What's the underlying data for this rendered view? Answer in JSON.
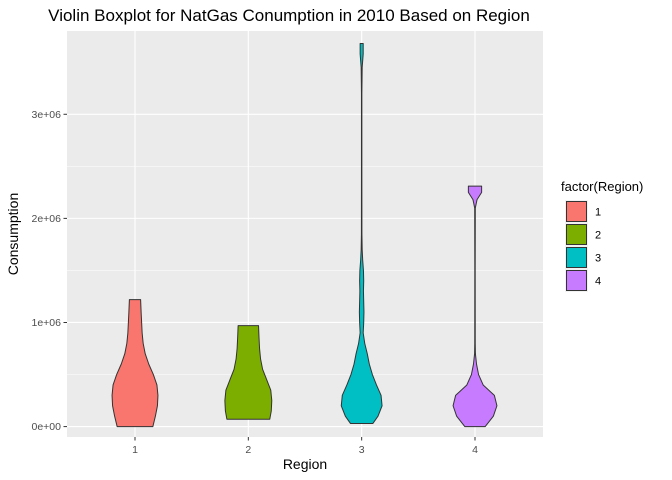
{
  "chart_data": {
    "type": "violin",
    "title": "Violin Boxplot for NatGas Conumption in 2010 Based on Region",
    "xlabel": "Region",
    "ylabel": "Consumption",
    "categories": [
      "1",
      "2",
      "3",
      "4"
    ],
    "ylim": [
      -100000,
      3800000
    ],
    "yticks": [
      {
        "value": 0,
        "label": "0e+00"
      },
      {
        "value": 1000000,
        "label": "1e+06"
      },
      {
        "value": 2000000,
        "label": "2e+06"
      },
      {
        "value": 3000000,
        "label": "3e+06"
      }
    ],
    "grid": true,
    "legend": {
      "title": "factor(Region)",
      "position": "right",
      "entries": [
        {
          "label": "1",
          "color": "#F8766D"
        },
        {
          "label": "2",
          "color": "#7CAE00"
        },
        {
          "label": "3",
          "color": "#00BFC4"
        },
        {
          "label": "4",
          "color": "#C77CFF"
        }
      ]
    },
    "series": [
      {
        "category": "1",
        "color": "#F8766D",
        "min": 0,
        "max": 1220000,
        "profile": [
          [
            0,
            0.35
          ],
          [
            100000,
            0.4
          ],
          [
            200000,
            0.44
          ],
          [
            300000,
            0.45
          ],
          [
            400000,
            0.43
          ],
          [
            500000,
            0.36
          ],
          [
            600000,
            0.27
          ],
          [
            700000,
            0.2
          ],
          [
            800000,
            0.16
          ],
          [
            900000,
            0.14
          ],
          [
            1000000,
            0.13
          ],
          [
            1100000,
            0.12
          ],
          [
            1220000,
            0.11
          ]
        ]
      },
      {
        "category": "2",
        "color": "#7CAE00",
        "min": 70000,
        "max": 970000,
        "profile": [
          [
            70000,
            0.42
          ],
          [
            150000,
            0.45
          ],
          [
            250000,
            0.46
          ],
          [
            350000,
            0.44
          ],
          [
            450000,
            0.36
          ],
          [
            550000,
            0.28
          ],
          [
            650000,
            0.24
          ],
          [
            750000,
            0.22
          ],
          [
            850000,
            0.21
          ],
          [
            970000,
            0.2
          ]
        ]
      },
      {
        "category": "3",
        "color": "#00BFC4",
        "min": 30000,
        "max": 3680000,
        "profile": [
          [
            30000,
            0.22
          ],
          [
            100000,
            0.32
          ],
          [
            200000,
            0.4
          ],
          [
            300000,
            0.38
          ],
          [
            400000,
            0.29
          ],
          [
            500000,
            0.21
          ],
          [
            600000,
            0.15
          ],
          [
            700000,
            0.11
          ],
          [
            800000,
            0.06
          ],
          [
            900000,
            0.03
          ],
          [
            1000000,
            0.04
          ],
          [
            1100000,
            0.045
          ],
          [
            1200000,
            0.04
          ],
          [
            1300000,
            0.035
          ],
          [
            1400000,
            0.04
          ],
          [
            1500000,
            0.035
          ],
          [
            1600000,
            0.02
          ],
          [
            1700000,
            0.01
          ],
          [
            1850000,
            0.005
          ],
          [
            2500000,
            0.004
          ],
          [
            3200000,
            0.004
          ],
          [
            3450000,
            0.01
          ],
          [
            3580000,
            0.03
          ],
          [
            3680000,
            0.03
          ]
        ]
      },
      {
        "category": "4",
        "color": "#C77CFF",
        "min": 0,
        "max": 2310000,
        "profile": [
          [
            0,
            0.2
          ],
          [
            100000,
            0.36
          ],
          [
            200000,
            0.43
          ],
          [
            300000,
            0.38
          ],
          [
            400000,
            0.16
          ],
          [
            500000,
            0.07
          ],
          [
            600000,
            0.03
          ],
          [
            700000,
            0.008
          ],
          [
            800000,
            0.005
          ],
          [
            1500000,
            0.004
          ],
          [
            2100000,
            0.006
          ],
          [
            2180000,
            0.04
          ],
          [
            2250000,
            0.13
          ],
          [
            2310000,
            0.13
          ]
        ]
      }
    ]
  }
}
